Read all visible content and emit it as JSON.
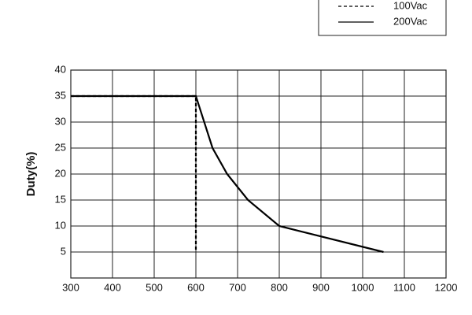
{
  "chart_data": {
    "type": "line",
    "y_label": "Duty(%)",
    "xlim": [
      300,
      1200
    ],
    "xticks": [
      300,
      400,
      500,
      600,
      700,
      800,
      900,
      1000,
      1100,
      1200
    ],
    "ylim": [
      0,
      40
    ],
    "yticks": [
      5,
      10,
      15,
      20,
      25,
      30,
      35,
      40
    ],
    "grid": true,
    "legend": "top-right",
    "series": [
      {
        "name": "100Vac",
        "color": "#000000",
        "dash": "dotted",
        "x": [
          300,
          600,
          600
        ],
        "values": [
          35,
          35,
          5
        ]
      },
      {
        "name": "200Vac",
        "color": "#000000",
        "dash": "solid",
        "x": [
          300,
          600,
          640,
          675,
          725,
          800,
          1050
        ],
        "values": [
          35,
          35,
          25,
          20,
          15,
          10,
          5
        ]
      }
    ]
  }
}
